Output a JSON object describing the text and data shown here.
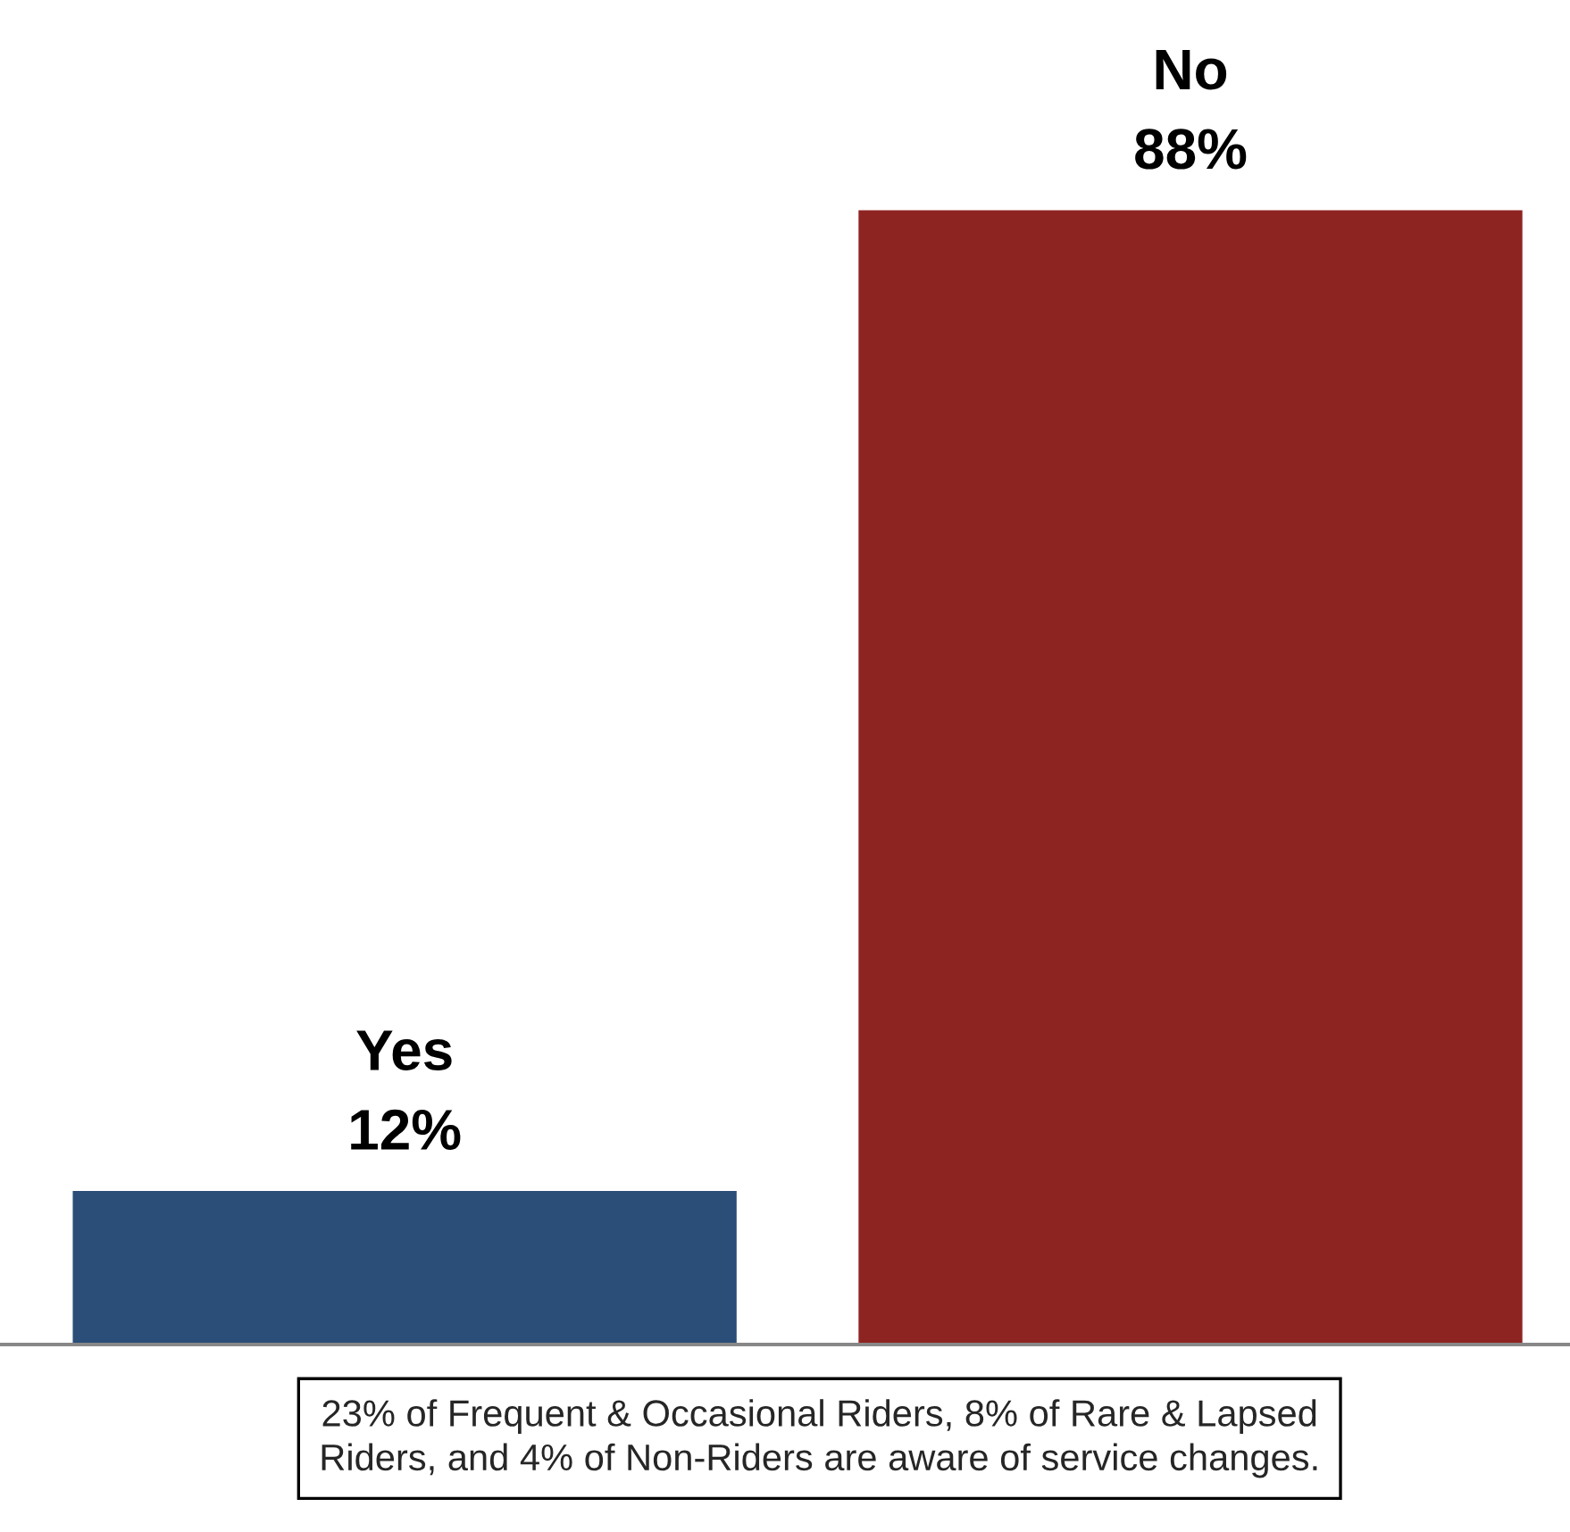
{
  "chart_data": {
    "type": "bar",
    "categories": [
      "Yes",
      "No"
    ],
    "values": [
      12,
      88
    ],
    "colors": [
      "#2a4e78",
      "#8e2422"
    ],
    "value_labels": [
      "12%",
      "88%"
    ],
    "annotations": [
      "23% of Frequent & Occasional Riders, 8% of Rare & Lapsed\nRiders, and 4% of Non-Riders are aware of service changes."
    ],
    "data_labels": false
  }
}
